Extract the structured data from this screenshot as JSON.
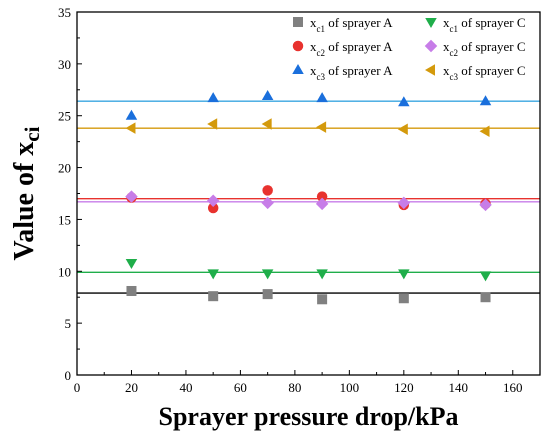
{
  "chart_data": {
    "type": "scatter",
    "xlabel": "Sprayer pressure drop/kPa",
    "ylabel_main": "Value of x",
    "ylabel_sub": "ci",
    "xlim": [
      0,
      170
    ],
    "ylim": [
      0,
      35
    ],
    "xticks": [
      0,
      20,
      40,
      60,
      80,
      100,
      120,
      140,
      160
    ],
    "yticks": [
      0,
      5,
      10,
      15,
      20,
      25,
      30,
      35
    ],
    "grid": false,
    "legend_position": "top-right",
    "series": [
      {
        "label_pre": "x",
        "label_sub": "c1",
        "label_post": " of sprayer A",
        "color": "#808080",
        "marker": "square",
        "x": [
          20,
          50,
          70,
          90,
          120,
          150
        ],
        "values": [
          8.1,
          7.6,
          7.8,
          7.3,
          7.4,
          7.5
        ],
        "fit": 7.9
      },
      {
        "label_pre": "x",
        "label_sub": "c2",
        "label_post": " of sprayer A",
        "color": "#e8322e",
        "marker": "circle",
        "x": [
          20,
          50,
          70,
          90,
          120,
          150
        ],
        "values": [
          17.1,
          16.1,
          17.8,
          17.2,
          16.4,
          16.5
        ],
        "fit": 17.0
      },
      {
        "label_pre": "x",
        "label_sub": "c3",
        "label_post": " of sprayer A",
        "color": "#1a6fdc",
        "marker": "triangle-up",
        "x": [
          20,
          50,
          70,
          90,
          120,
          150
        ],
        "values": [
          25.0,
          26.7,
          26.9,
          26.7,
          26.3,
          26.4
        ],
        "fit": 26.4
      },
      {
        "label_pre": "x",
        "label_sub": "c1",
        "label_post": " of sprayer C",
        "color": "#1fae4a",
        "marker": "triangle-down",
        "x": [
          20,
          50,
          70,
          90,
          120,
          150
        ],
        "values": [
          10.8,
          9.8,
          9.8,
          9.8,
          9.8,
          9.6
        ],
        "fit": 9.9
      },
      {
        "label_pre": "x",
        "label_sub": "c2",
        "label_post": " of sprayer C",
        "color": "#c77de8",
        "marker": "diamond",
        "x": [
          20,
          50,
          70,
          90,
          120,
          150
        ],
        "values": [
          17.2,
          16.8,
          16.6,
          16.5,
          16.6,
          16.4
        ],
        "fit": 16.7
      },
      {
        "label_pre": "x",
        "label_sub": "c3",
        "label_post": " of sprayer C",
        "color": "#d49a0c",
        "marker": "triangle-left",
        "x": [
          20,
          50,
          70,
          90,
          120,
          150
        ],
        "values": [
          23.8,
          24.2,
          24.2,
          23.9,
          23.7,
          23.5
        ],
        "fit": 23.8
      }
    ],
    "fit_line_colors": [
      "#000000",
      "#e8322e",
      "#3aa6e0",
      "#1fae4a",
      "#c77de8",
      "#d49a0c"
    ]
  }
}
